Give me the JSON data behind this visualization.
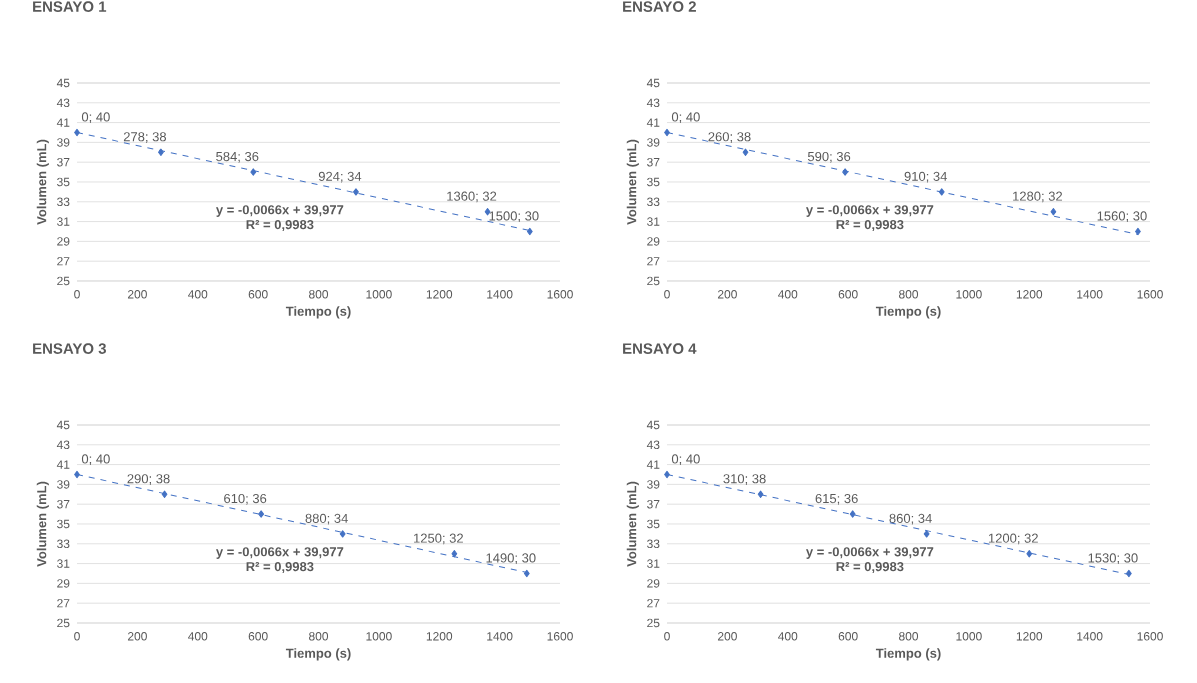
{
  "chart_data": [
    {
      "type": "scatter",
      "title": "ENSAYO 1",
      "xlabel": "Tiempo (s)",
      "ylabel": "Volumen (mL)",
      "xlim": [
        0,
        1600
      ],
      "xticks": [
        0,
        200,
        400,
        600,
        800,
        1000,
        1200,
        1400,
        1600
      ],
      "ylim": [
        25,
        45
      ],
      "yticks": [
        25,
        27,
        29,
        31,
        33,
        35,
        37,
        39,
        41,
        43,
        45
      ],
      "grid": "y",
      "marker": "diamond",
      "series": [
        {
          "color": "#4472c4",
          "x": [
            0,
            278,
            584,
            924,
            1360,
            1500
          ],
          "values": [
            40,
            38,
            36,
            34,
            32,
            30
          ],
          "value_labels": [
            "0; 40",
            "278; 38",
            "584; 36",
            "924; 34",
            "1360; 32",
            "1500; 30"
          ]
        },
        {
          "type": "line",
          "line_style": "dashed",
          "marker": "none",
          "color": "#4472c4",
          "x": [
            0,
            1500
          ],
          "values": [
            40.0,
            30.1
          ]
        }
      ],
      "annotations": [
        "y = -0,0066x + 39,977",
        "R² = 0,9983"
      ]
    },
    {
      "type": "scatter",
      "title": "ENSAYO 2",
      "xlabel": "Tiempo (s)",
      "ylabel": "Volumen (mL)",
      "xlim": [
        0,
        1600
      ],
      "xticks": [
        0,
        200,
        400,
        600,
        800,
        1000,
        1200,
        1400,
        1600
      ],
      "ylim": [
        25,
        45
      ],
      "yticks": [
        25,
        27,
        29,
        31,
        33,
        35,
        37,
        39,
        41,
        43,
        45
      ],
      "grid": "y",
      "marker": "diamond",
      "series": [
        {
          "color": "#4472c4",
          "x": [
            0,
            260,
            590,
            910,
            1280,
            1560
          ],
          "values": [
            40,
            38,
            36,
            34,
            32,
            30
          ],
          "value_labels": [
            "0; 40",
            "260; 38",
            "590; 36",
            "910; 34",
            "1280; 32",
            "1560; 30"
          ]
        },
        {
          "type": "line",
          "line_style": "dashed",
          "marker": "none",
          "color": "#4472c4",
          "x": [
            0,
            1560
          ],
          "values": [
            40.0,
            29.7
          ]
        }
      ],
      "annotations": [
        "y = -0,0066x + 39,977",
        "R² = 0,9983"
      ]
    },
    {
      "type": "scatter",
      "title": "ENSAYO 3",
      "xlabel": "Tiempo (s)",
      "ylabel": "Volumen (mL)",
      "xlim": [
        0,
        1600
      ],
      "xticks": [
        0,
        200,
        400,
        600,
        800,
        1000,
        1200,
        1400,
        1600
      ],
      "ylim": [
        25,
        45
      ],
      "yticks": [
        25,
        27,
        29,
        31,
        33,
        35,
        37,
        39,
        41,
        43,
        45
      ],
      "grid": "y",
      "marker": "diamond",
      "series": [
        {
          "color": "#4472c4",
          "x": [
            0,
            290,
            610,
            880,
            1250,
            1490
          ],
          "values": [
            40,
            38,
            36,
            34,
            32,
            30
          ],
          "value_labels": [
            "0; 40",
            "290; 38",
            "610; 36",
            "880; 34",
            "1250; 32",
            "1490; 30"
          ]
        },
        {
          "type": "line",
          "line_style": "dashed",
          "marker": "none",
          "color": "#4472c4",
          "x": [
            0,
            1490
          ],
          "values": [
            40.0,
            30.1
          ]
        }
      ],
      "annotations": [
        "y = -0,0066x + 39,977",
        "R² = 0,9983"
      ]
    },
    {
      "type": "scatter",
      "title": "ENSAYO 4",
      "xlabel": "Tiempo (s)",
      "ylabel": "Volumen (mL)",
      "xlim": [
        0,
        1600
      ],
      "xticks": [
        0,
        200,
        400,
        600,
        800,
        1000,
        1200,
        1400,
        1600
      ],
      "ylim": [
        25,
        45
      ],
      "yticks": [
        25,
        27,
        29,
        31,
        33,
        35,
        37,
        39,
        41,
        43,
        45
      ],
      "grid": "y",
      "marker": "diamond",
      "series": [
        {
          "color": "#4472c4",
          "x": [
            0,
            310,
            615,
            860,
            1200,
            1530
          ],
          "values": [
            40,
            38,
            36,
            34,
            32,
            30
          ],
          "value_labels": [
            "0; 40",
            "310; 38",
            "615; 36",
            "860; 34",
            "1200; 32",
            "1530; 30"
          ]
        },
        {
          "type": "line",
          "line_style": "dashed",
          "marker": "none",
          "color": "#4472c4",
          "x": [
            0,
            1530
          ],
          "values": [
            40.0,
            29.9
          ]
        }
      ],
      "annotations": [
        "y = -0,0066x + 39,977",
        "R² = 0,9983"
      ]
    }
  ]
}
